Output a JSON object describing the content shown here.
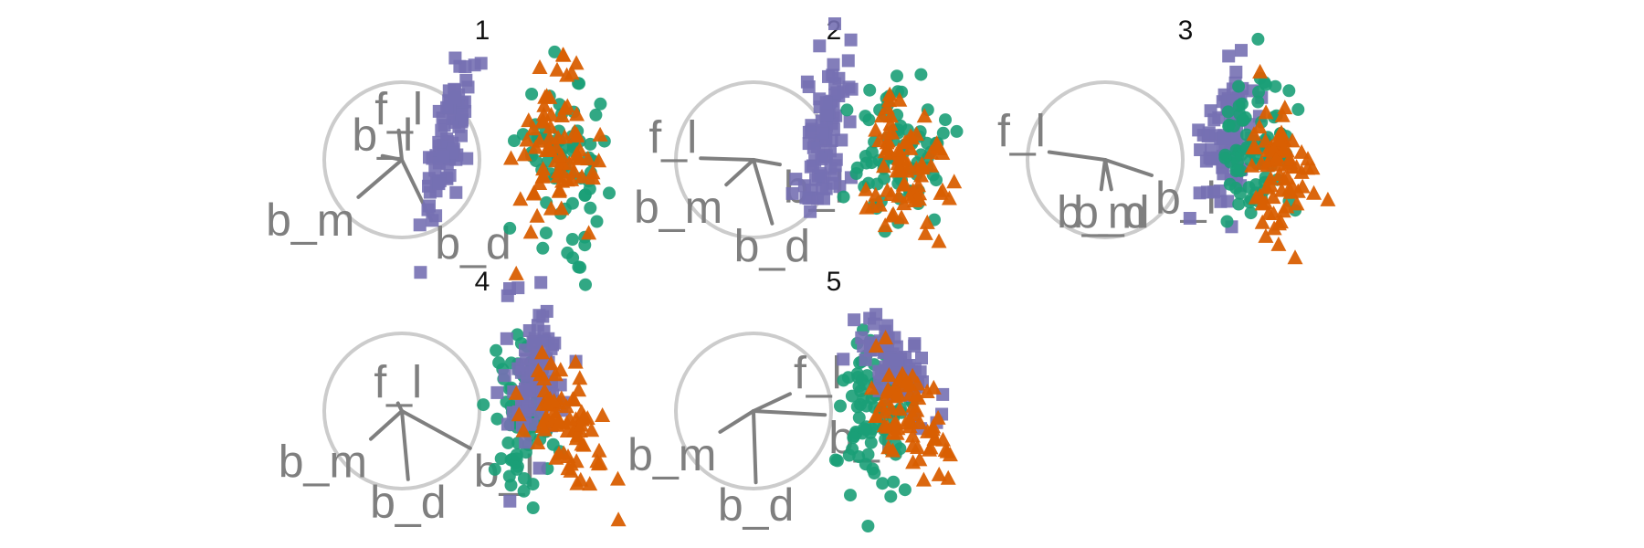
{
  "colors": {
    "circle": "#cccccc",
    "axis": "#7f7f7f",
    "series": {
      "green": "#1b9e77",
      "orange": "#d95f02",
      "purple": "#7570b3"
    }
  },
  "chart_data": {
    "type": "scatter",
    "title": "",
    "xlabel": "",
    "ylabel": "",
    "grid": false,
    "legend": "none",
    "series": [
      {
        "key": "green",
        "marker": "circle",
        "color": "#1b9e77"
      },
      {
        "key": "orange",
        "marker": "triangle",
        "color": "#d95f02"
      },
      {
        "key": "purple",
        "marker": "square",
        "color": "#7570b3"
      }
    ],
    "panels": [
      {
        "title": "1",
        "axes": [
          {
            "label": "f_l",
            "x": -0.04,
            "y": 0.38
          },
          {
            "label": "b_l",
            "x": -0.25,
            "y": 0.05
          },
          {
            "label": "b_m",
            "x": -0.56,
            "y": -0.48
          },
          {
            "label": "b_d",
            "x": 0.38,
            "y": -0.78
          }
        ],
        "clusters": [
          {
            "series": "purple",
            "cx": 0.6,
            "cy": 0.28,
            "sx": 0.18,
            "sy": 0.52,
            "rho": 0.75,
            "n": 85
          },
          {
            "series": "green",
            "cx": 2.12,
            "cy": 0.0,
            "sx": 0.28,
            "sy": 0.5,
            "rho": -0.1,
            "n": 75
          },
          {
            "series": "orange",
            "cx": 1.98,
            "cy": 0.02,
            "sx": 0.26,
            "sy": 0.52,
            "rho": 0.0,
            "n": 75
          }
        ]
      },
      {
        "title": "2",
        "axes": [
          {
            "label": "f_l",
            "x": -0.68,
            "y": 0.02
          },
          {
            "label": "b_l",
            "x": 0.34,
            "y": -0.06
          },
          {
            "label": "b_m",
            "x": -0.35,
            "y": -0.32
          },
          {
            "label": "b_d",
            "x": 0.24,
            "y": -0.82
          }
        ],
        "clusters": [
          {
            "series": "purple",
            "cx": 0.93,
            "cy": 0.28,
            "sx": 0.18,
            "sy": 0.55,
            "rho": 0.45,
            "n": 85
          },
          {
            "series": "green",
            "cx": 1.9,
            "cy": 0.02,
            "sx": 0.3,
            "sy": 0.52,
            "rho": 0.0,
            "n": 75
          },
          {
            "series": "orange",
            "cx": 2.0,
            "cy": -0.05,
            "sx": 0.24,
            "sy": 0.48,
            "rho": 0.0,
            "n": 75
          }
        ]
      },
      {
        "title": "3",
        "axes": [
          {
            "label": "f_l",
            "x": -0.72,
            "y": 0.1
          },
          {
            "label": "b_l",
            "x": 0.6,
            "y": -0.2
          },
          {
            "label": "b_m",
            "x": -0.05,
            "y": -0.38
          },
          {
            "label": "b_d",
            "x": 0.08,
            "y": -0.38
          }
        ],
        "clusters": [
          {
            "series": "purple",
            "cx": 1.55,
            "cy": 0.22,
            "sx": 0.18,
            "sy": 0.42,
            "rho": 0.3,
            "n": 85
          },
          {
            "series": "green",
            "cx": 1.92,
            "cy": 0.05,
            "sx": 0.2,
            "sy": 0.5,
            "rho": 0.0,
            "n": 75
          },
          {
            "series": "orange",
            "cx": 2.22,
            "cy": -0.05,
            "sx": 0.22,
            "sy": 0.52,
            "rho": -0.2,
            "n": 75
          }
        ]
      },
      {
        "title": "4",
        "axes": [
          {
            "label": "f_l",
            "x": -0.05,
            "y": 0.1
          },
          {
            "label": "b_l",
            "x": 0.88,
            "y": -0.48
          },
          {
            "label": "b_m",
            "x": -0.4,
            "y": -0.36
          },
          {
            "label": "b_d",
            "x": 0.08,
            "y": -0.88
          }
        ],
        "clusters": [
          {
            "series": "green",
            "cx": 1.55,
            "cy": -0.15,
            "sx": 0.22,
            "sy": 0.55,
            "rho": 0.1,
            "n": 75
          },
          {
            "series": "purple",
            "cx": 1.72,
            "cy": 0.45,
            "sx": 0.18,
            "sy": 0.48,
            "rho": 0.15,
            "n": 85
          },
          {
            "series": "orange",
            "cx": 2.15,
            "cy": -0.1,
            "sx": 0.26,
            "sy": 0.42,
            "rho": -0.35,
            "n": 75
          }
        ]
      },
      {
        "title": "5",
        "axes": [
          {
            "label": "f_l",
            "x": 0.47,
            "y": 0.22
          },
          {
            "label": "b_l",
            "x": 0.92,
            "y": -0.05
          },
          {
            "label": "b_m",
            "x": -0.43,
            "y": -0.27
          },
          {
            "label": "b_d",
            "x": 0.03,
            "y": -0.92
          }
        ],
        "clusters": [
          {
            "series": "green",
            "cx": 1.55,
            "cy": -0.05,
            "sx": 0.22,
            "sy": 0.55,
            "rho": 0.0,
            "n": 80
          },
          {
            "series": "purple",
            "cx": 1.85,
            "cy": 0.55,
            "sx": 0.26,
            "sy": 0.3,
            "rho": -0.6,
            "n": 85
          },
          {
            "series": "orange",
            "cx": 2.05,
            "cy": -0.15,
            "sx": 0.26,
            "sy": 0.38,
            "rho": -0.45,
            "n": 70
          }
        ]
      }
    ]
  }
}
